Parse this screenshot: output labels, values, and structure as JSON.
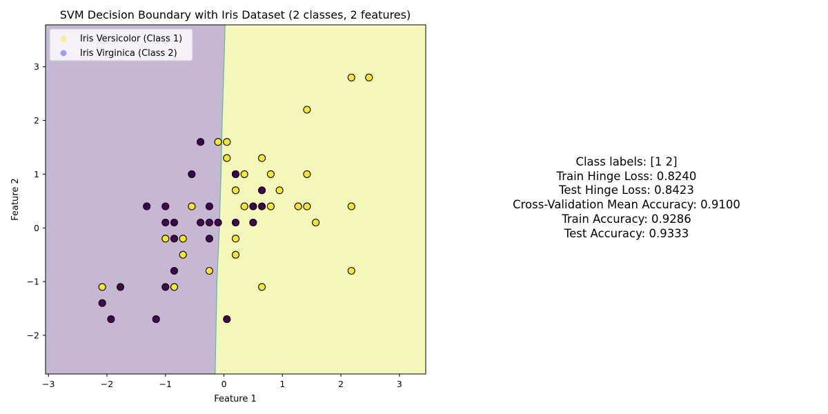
{
  "chart_data": {
    "type": "scatter",
    "title": "SVM Decision Boundary with Iris Dataset (2 classes, 2 features)",
    "xlabel": "Feature 1",
    "ylabel": "Feature 2",
    "xlim": [
      -3.05,
      3.45
    ],
    "ylim": [
      -2.72,
      3.78
    ],
    "xticks": [
      -3,
      -2,
      -1,
      0,
      1,
      2,
      3
    ],
    "yticks": [
      -2,
      -1,
      0,
      1,
      2,
      3
    ],
    "grid": false,
    "legend_position": "top-left",
    "decision_boundary": {
      "x_at_y": [
        [
          -2.72,
          -0.15
        ],
        [
          -1.0,
          -0.12
        ],
        [
          0.0,
          -0.08
        ],
        [
          1.0,
          -0.05
        ],
        [
          2.0,
          -0.03
        ],
        [
          3.0,
          0.0
        ],
        [
          3.78,
          0.02
        ]
      ],
      "left_region_color": "#c6b8d4",
      "right_region_color": "#f3f7ba",
      "boundary_color": "#5fb6a3"
    },
    "legend": [
      {
        "label": "Iris Versicolor (Class 1)",
        "color": "#fde725",
        "alpha": 0.5
      },
      {
        "label": "Iris Virginica (Class 2)",
        "color": "#0000ff",
        "alpha": 0.35
      }
    ],
    "series": [
      {
        "class": 1,
        "color": "#fde725",
        "points": [
          [
            2.18,
            2.8
          ],
          [
            2.48,
            2.8
          ],
          [
            1.42,
            2.2
          ],
          [
            -0.1,
            1.6
          ],
          [
            0.05,
            1.6
          ],
          [
            0.05,
            1.3
          ],
          [
            0.65,
            1.3
          ],
          [
            0.2,
            1.0
          ],
          [
            0.35,
            1.0
          ],
          [
            0.8,
            1.0
          ],
          [
            1.42,
            1.0
          ],
          [
            0.2,
            0.7
          ],
          [
            0.95,
            0.7
          ],
          [
            -0.55,
            0.4
          ],
          [
            0.35,
            0.4
          ],
          [
            0.8,
            0.4
          ],
          [
            1.27,
            0.4
          ],
          [
            1.42,
            0.4
          ],
          [
            2.18,
            0.4
          ],
          [
            1.57,
            0.1
          ],
          [
            -1.0,
            -0.2
          ],
          [
            -0.7,
            -0.2
          ],
          [
            0.2,
            -0.2
          ],
          [
            -0.7,
            -0.5
          ],
          [
            0.2,
            -0.5
          ],
          [
            -0.25,
            -0.8
          ],
          [
            2.18,
            -0.8
          ],
          [
            -2.08,
            -1.1
          ],
          [
            -0.85,
            -1.1
          ],
          [
            0.65,
            -1.1
          ]
        ]
      },
      {
        "class": 2,
        "color": "#440154",
        "points": [
          [
            -0.4,
            1.6
          ],
          [
            -0.55,
            1.0
          ],
          [
            0.2,
            1.0
          ],
          [
            0.65,
            0.7
          ],
          [
            -1.32,
            0.4
          ],
          [
            -1.0,
            0.4
          ],
          [
            -0.25,
            0.4
          ],
          [
            0.5,
            0.4
          ],
          [
            0.65,
            0.4
          ],
          [
            -1.0,
            0.1
          ],
          [
            -0.85,
            0.1
          ],
          [
            -0.4,
            0.1
          ],
          [
            -0.25,
            0.1
          ],
          [
            -0.1,
            0.1
          ],
          [
            0.2,
            0.1
          ],
          [
            0.5,
            0.1
          ],
          [
            -0.85,
            -0.2
          ],
          [
            -0.25,
            -0.2
          ],
          [
            -0.85,
            -0.8
          ],
          [
            -1.77,
            -1.1
          ],
          [
            -1.0,
            -1.1
          ],
          [
            -2.08,
            -1.4
          ],
          [
            -1.93,
            -1.7
          ],
          [
            -1.16,
            -1.7
          ],
          [
            0.05,
            -1.7
          ]
        ]
      }
    ]
  },
  "stats": {
    "class_labels": "Class labels: [1 2]",
    "train_hinge_loss": "Train Hinge Loss: 0.8240",
    "test_hinge_loss": "Test Hinge Loss: 0.8423",
    "cv_mean_accuracy": "Cross-Validation Mean Accuracy: 0.9100",
    "train_accuracy": "Train Accuracy: 0.9286",
    "test_accuracy": "Test Accuracy: 0.9333"
  }
}
